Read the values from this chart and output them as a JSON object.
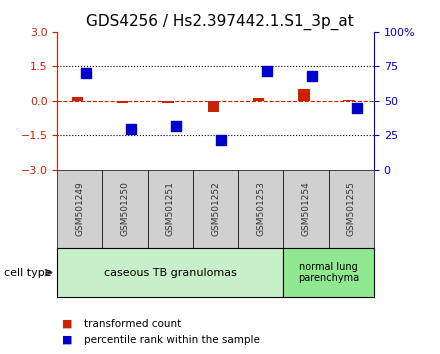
{
  "title": "GDS4256 / Hs2.397442.1.S1_3p_at",
  "samples": [
    "GSM501249",
    "GSM501250",
    "GSM501251",
    "GSM501252",
    "GSM501253",
    "GSM501254",
    "GSM501255"
  ],
  "red_bars": [
    0.15,
    -0.1,
    -0.08,
    -0.5,
    0.12,
    0.52,
    0.03
  ],
  "blue_squares_pct": [
    70,
    30,
    32,
    22,
    72,
    68,
    45
  ],
  "ylim_left": [
    -3,
    3
  ],
  "ylim_right": [
    0,
    100
  ],
  "yticks_left": [
    -3,
    -1.5,
    0,
    1.5,
    3
  ],
  "yticks_right": [
    0,
    25,
    50,
    75,
    100
  ],
  "hlines": [
    1.5,
    -1.5
  ],
  "group1_label": "caseous TB granulomas",
  "group1_samples": 5,
  "group2_label": "normal lung\nparenchyma",
  "group2_samples": 2,
  "cell_type_label": "cell type",
  "legend_red": "transformed count",
  "legend_blue": "percentile rank within the sample",
  "group1_color": "#c8f0c8",
  "group2_color": "#90e890",
  "sample_box_color": "#d0d0d0",
  "bar_color_red": "#cc2200",
  "bar_color_blue": "#0000cc",
  "title_fontsize": 11,
  "tick_fontsize": 8,
  "axis_color_left": "#cc2200",
  "axis_color_right": "#0000cc"
}
